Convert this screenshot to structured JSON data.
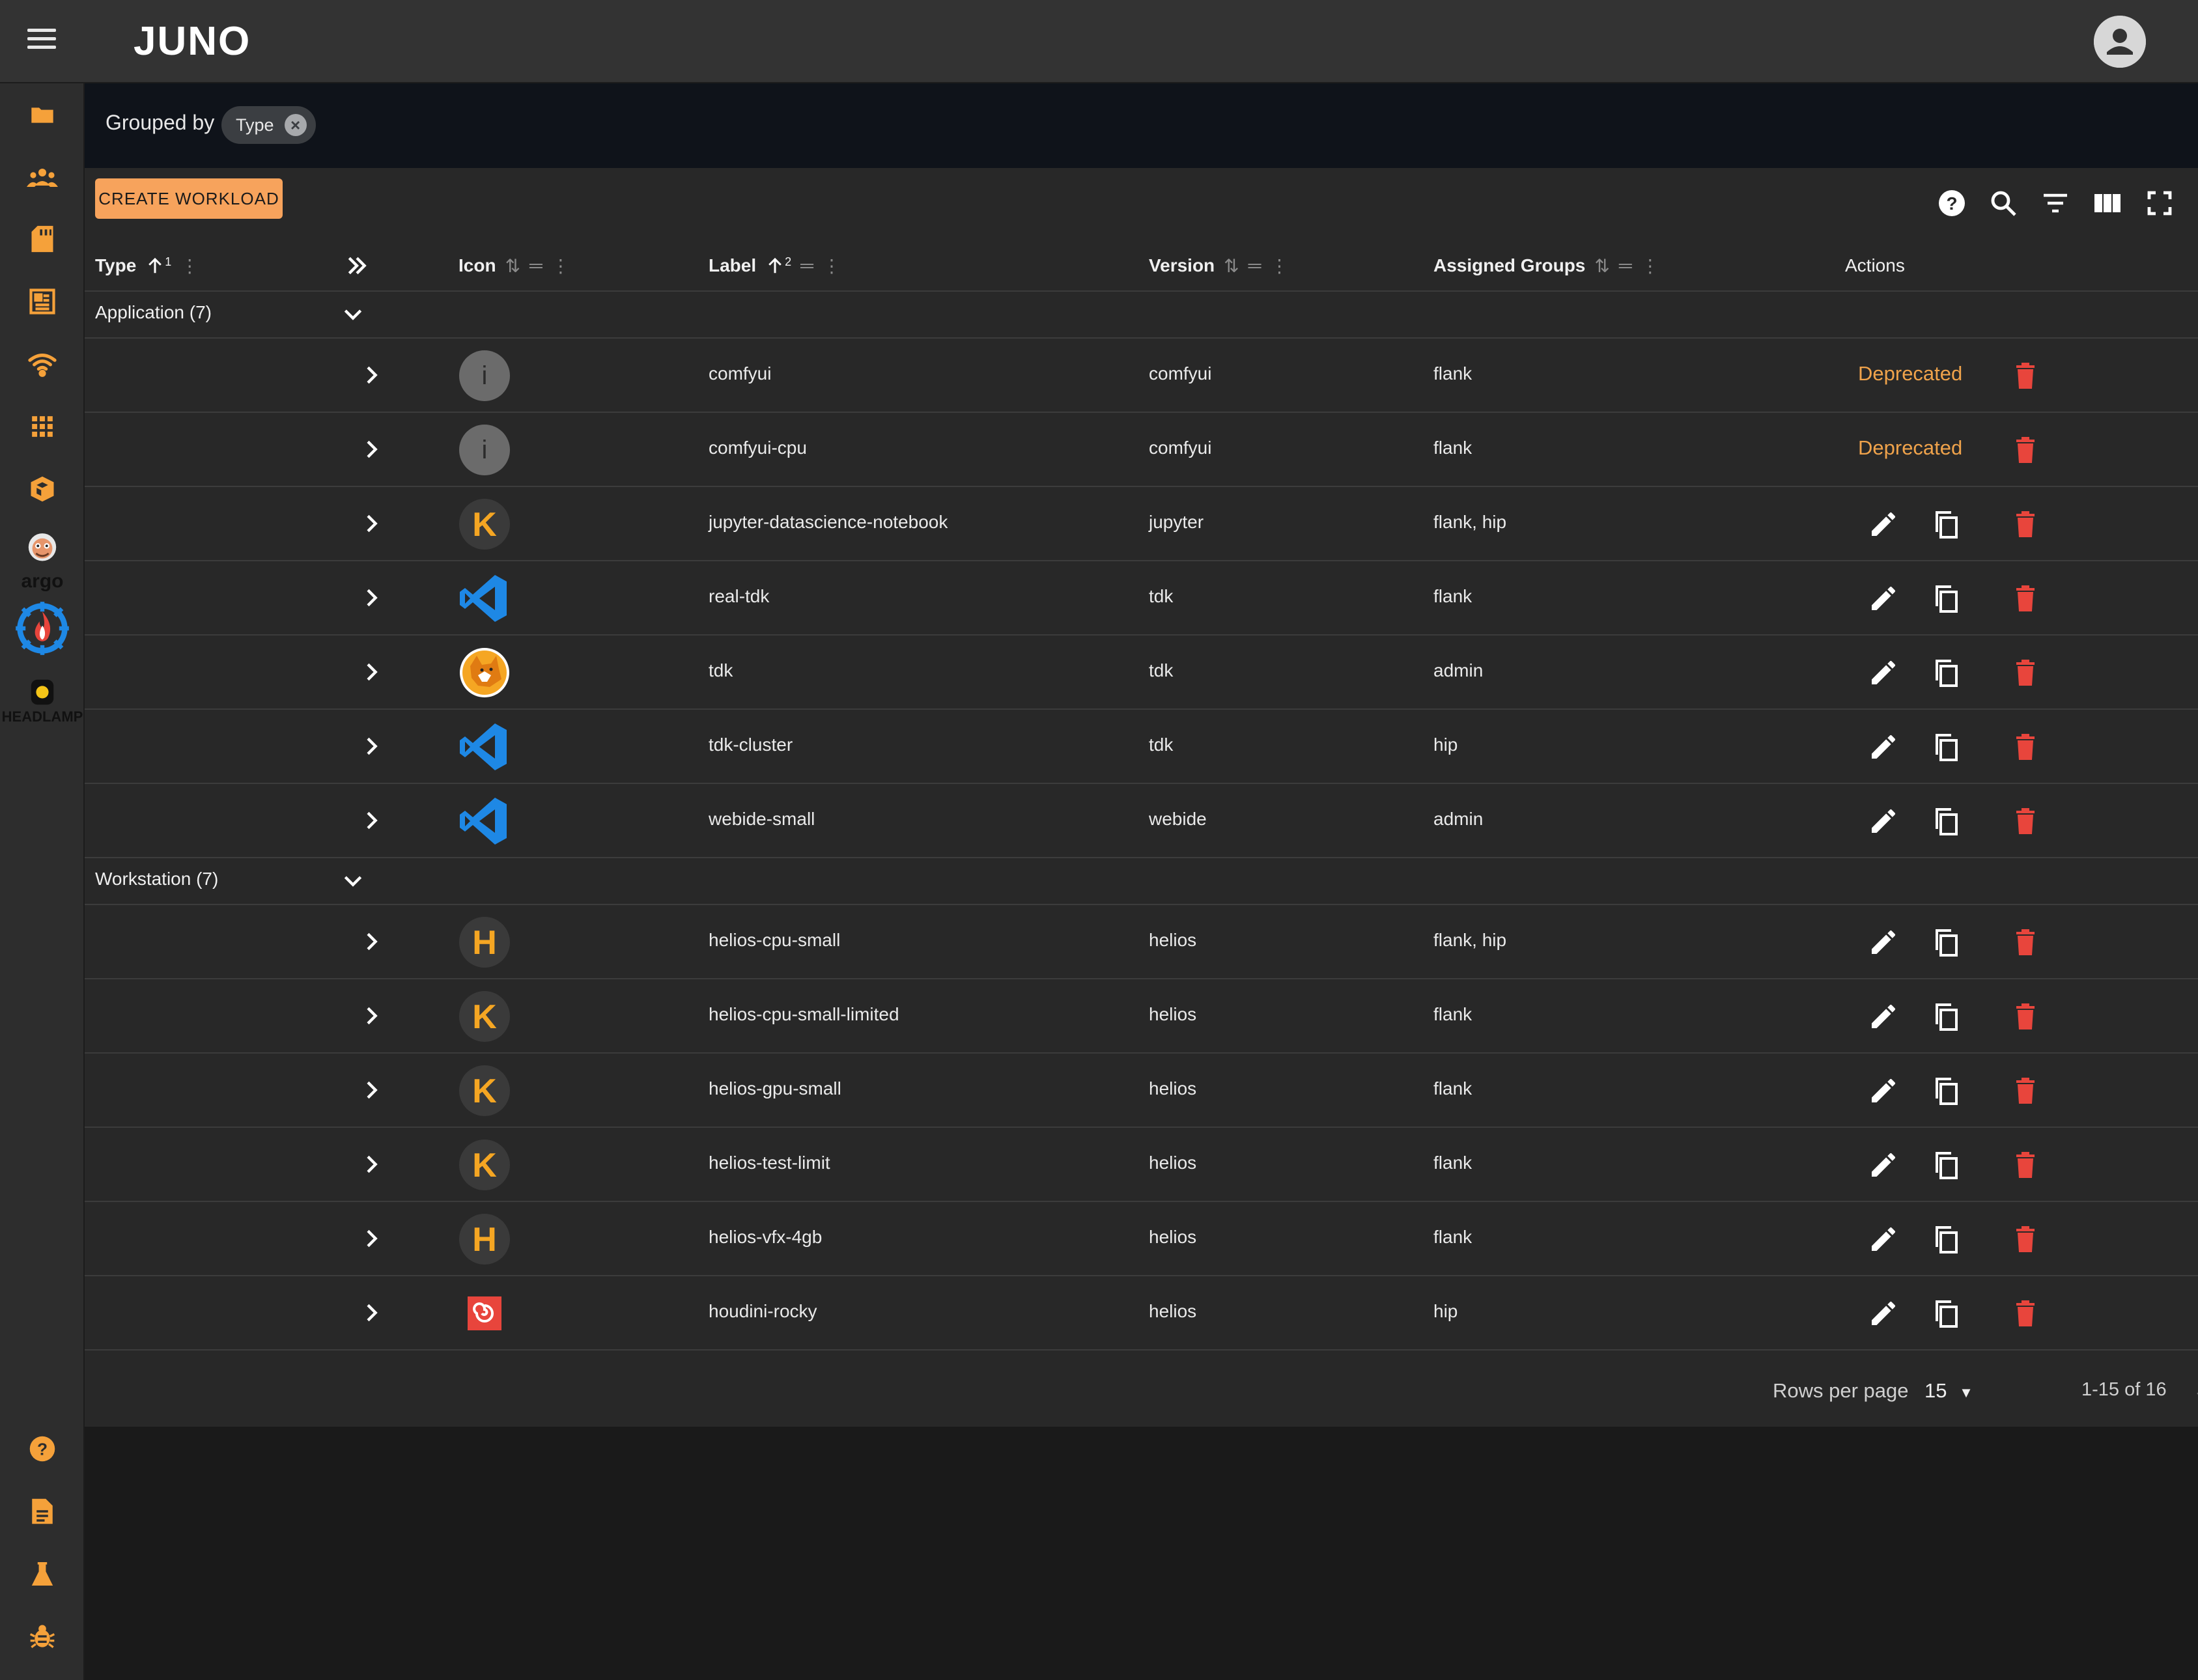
{
  "app": {
    "logo_text": "JUNO"
  },
  "sidebar": {
    "items": [
      {
        "icon": "folder-icon"
      },
      {
        "icon": "groups-icon"
      },
      {
        "icon": "sd-card-icon"
      },
      {
        "icon": "dashboard-icon"
      },
      {
        "icon": "wifi-icon"
      },
      {
        "icon": "apps-grid-icon"
      },
      {
        "icon": "package-icon"
      },
      {
        "icon": "argo-logo",
        "text": "argo"
      },
      {
        "icon": "kubernetes-flame-logo"
      },
      {
        "icon": "headlamp-logo",
        "text": "HEADLAMP"
      }
    ],
    "bottom_items": [
      {
        "icon": "help-icon"
      },
      {
        "icon": "document-icon"
      },
      {
        "icon": "flask-icon"
      },
      {
        "icon": "bug-icon"
      }
    ]
  },
  "groupbar": {
    "label": "Grouped by",
    "chip": "Type"
  },
  "toolbar": {
    "create_label": "CREATE WORKLOAD"
  },
  "columns": {
    "type": "Type",
    "type_sort_index": "1",
    "icon": "Icon",
    "label": "Label",
    "label_sort_index": "2",
    "version": "Version",
    "groups": "Assigned Groups",
    "actions": "Actions"
  },
  "groups": [
    {
      "label": "Application (7)",
      "rows": [
        {
          "icon": "info-icon",
          "label": "comfyui",
          "version": "comfyui",
          "groups": "flank",
          "deprecated": "Deprecated"
        },
        {
          "icon": "info-icon",
          "label": "comfyui-cpu",
          "version": "comfyui",
          "groups": "flank",
          "deprecated": "Deprecated"
        },
        {
          "icon": "k-logo",
          "label": "jupyter-datascience-notebook",
          "version": "jupyter",
          "groups": "flank, hip"
        },
        {
          "icon": "vscode-logo",
          "label": "real-tdk",
          "version": "tdk",
          "groups": "flank"
        },
        {
          "icon": "fox-logo",
          "label": "tdk",
          "version": "tdk",
          "groups": "admin"
        },
        {
          "icon": "vscode-logo",
          "label": "tdk-cluster",
          "version": "tdk",
          "groups": "hip"
        },
        {
          "icon": "vscode-logo",
          "label": "webide-small",
          "version": "webide",
          "groups": "admin"
        }
      ]
    },
    {
      "label": "Workstation (7)",
      "rows": [
        {
          "icon": "h-logo",
          "label": "helios-cpu-small",
          "version": "helios",
          "groups": "flank, hip"
        },
        {
          "icon": "k-logo",
          "label": "helios-cpu-small-limited",
          "version": "helios",
          "groups": "flank"
        },
        {
          "icon": "k-logo",
          "label": "helios-gpu-small",
          "version": "helios",
          "groups": "flank"
        },
        {
          "icon": "k-logo",
          "label": "helios-test-limit",
          "version": "helios",
          "groups": "flank"
        },
        {
          "icon": "h-logo",
          "label": "helios-vfx-4gb",
          "version": "helios",
          "groups": "flank"
        },
        {
          "icon": "houdini-logo",
          "label": "houdini-rocky",
          "version": "helios",
          "groups": "hip"
        }
      ]
    }
  ],
  "pagination": {
    "rows_per_page_label": "Rows per page",
    "rows_per_page": "15",
    "range": "1-15 of 16"
  },
  "colors": {
    "accent": "#f7a35c",
    "delete": "#e8453c",
    "deprecated": "#f0a34b",
    "vscode": "#1e88e5"
  }
}
